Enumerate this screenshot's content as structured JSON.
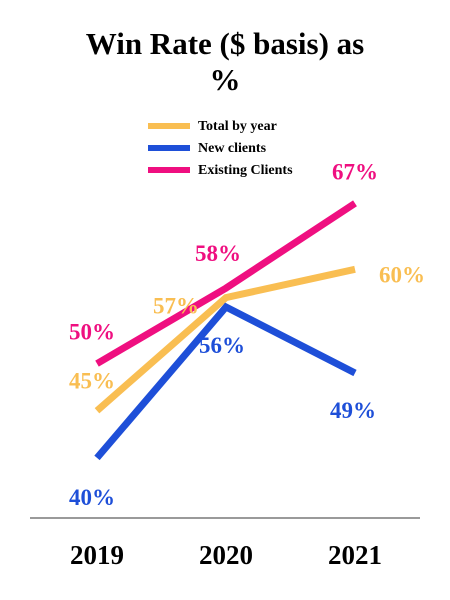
{
  "chart_data": {
    "type": "line",
    "title_lines": [
      "Win Rate ($ basis) as",
      "%"
    ],
    "categories": [
      "2019",
      "2020",
      "2021"
    ],
    "ylim": [
      35,
      70
    ],
    "grid": false,
    "legend_position": "top-center",
    "series": [
      {
        "name": "Total by year",
        "color": "#F9BE52",
        "values": [
          45,
          57,
          60
        ],
        "labels": [
          "45%",
          "57%",
          "60%"
        ]
      },
      {
        "name": "New clients",
        "color": "#1E4FD8",
        "values": [
          40,
          56,
          49
        ],
        "labels": [
          "40%",
          "56%",
          "49%"
        ]
      },
      {
        "name": "Existing Clients",
        "color": "#EF0F80",
        "values": [
          50,
          58,
          67
        ],
        "labels": [
          "50%",
          "58%",
          "67%"
        ]
      }
    ]
  }
}
